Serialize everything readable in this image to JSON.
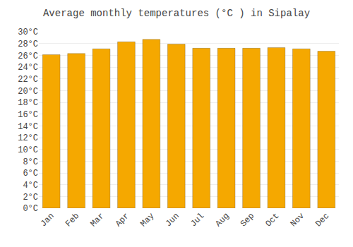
{
  "chart_data": {
    "type": "bar",
    "title": "Average monthly temperatures (°C ) in Sipalay",
    "categories": [
      "Jan",
      "Feb",
      "Mar",
      "Apr",
      "May",
      "Jun",
      "Jul",
      "Aug",
      "Sep",
      "Oct",
      "Nov",
      "Dec"
    ],
    "values": [
      26.1,
      26.3,
      27.1,
      28.3,
      28.7,
      27.9,
      27.2,
      27.2,
      27.2,
      27.3,
      27.1,
      26.7
    ],
    "color": "#F5A800",
    "ylim": [
      0,
      30
    ],
    "yticks": [
      {
        "value": 0,
        "label": "0°C"
      },
      {
        "value": 2,
        "label": "2°C"
      },
      {
        "value": 4,
        "label": "4°C"
      },
      {
        "value": 6,
        "label": "6°C"
      },
      {
        "value": 8,
        "label": "8°C"
      },
      {
        "value": 10,
        "label": "10°C"
      },
      {
        "value": 12,
        "label": "12°C"
      },
      {
        "value": 14,
        "label": "14°C"
      },
      {
        "value": 16,
        "label": "16°C"
      },
      {
        "value": 18,
        "label": "18°C"
      },
      {
        "value": 20,
        "label": "20°C"
      },
      {
        "value": 22,
        "label": "22°C"
      },
      {
        "value": 24,
        "label": "24°C"
      },
      {
        "value": 26,
        "label": "26°C"
      },
      {
        "value": 28,
        "label": "28°C"
      },
      {
        "value": 30,
        "label": "30°C"
      }
    ],
    "grid": true
  }
}
